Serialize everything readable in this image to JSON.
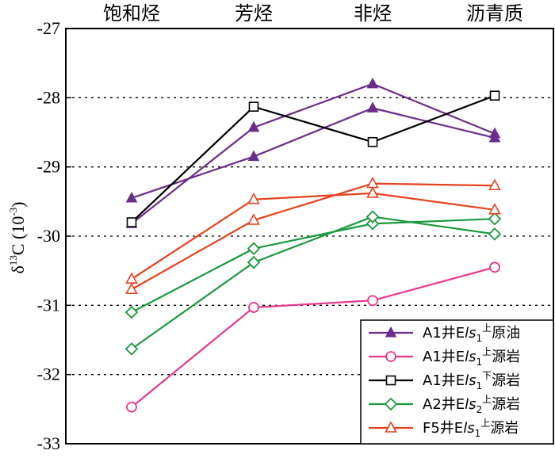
{
  "chart_data": {
    "type": "line",
    "categories": [
      "饱和烃",
      "芳烃",
      "非烃",
      "沥青质"
    ],
    "ylabel": "δ13C (10-3)",
    "ylabel_parts": {
      "delta": "δ",
      "sup1": "13",
      "c": "C (10",
      "sup2": "-3",
      "close": ")"
    },
    "ylim": [
      -33,
      -27
    ],
    "yticks": [
      -27,
      -28,
      -29,
      -30,
      -31,
      -32,
      -33
    ],
    "ytick_labels": [
      "-27",
      "-28",
      "-29",
      "-30",
      "-31",
      "-32",
      "-33"
    ],
    "grid": "horizontal dotted",
    "legend_position": "bottom-right",
    "series": [
      {
        "name": "A1井Els1上原油",
        "legend": {
          "pre": "A1井E",
          "it": "ls",
          "sub": "1",
          "sup": "上",
          "post": "原油"
        },
        "color": "#6b2d8b",
        "marker": "triangle-filled",
        "lines": [
          [
            -29.45,
            -28.85,
            -28.15,
            -28.58
          ],
          [
            -29.82,
            -28.43,
            -27.8,
            -28.52
          ]
        ]
      },
      {
        "name": "A1井Els1上源岩",
        "legend": {
          "pre": "A1井E",
          "it": "ls",
          "sub": "1",
          "sup": "上",
          "post": "源岩"
        },
        "color": "#e8368f",
        "marker": "circle",
        "lines": [
          [
            -32.47,
            -31.03,
            -30.93,
            -30.45
          ]
        ]
      },
      {
        "name": "A1井Els1下源岩",
        "legend": {
          "pre": "A1井E",
          "it": "ls",
          "sub": "1",
          "sup": "下",
          "post": "源岩"
        },
        "color": "#000000",
        "marker": "square",
        "lines": [
          [
            -29.8,
            -28.13,
            -28.64,
            -27.97
          ]
        ]
      },
      {
        "name": "A2井Els2上源岩",
        "legend": {
          "pre": "A2井E",
          "it": "ls",
          "sub": "2",
          "sup": "上",
          "post": "源岩"
        },
        "color": "#1a9a3c",
        "marker": "diamond",
        "lines": [
          [
            -31.1,
            -30.18,
            -29.82,
            -29.75
          ],
          [
            -31.63,
            -30.38,
            -29.72,
            -29.97
          ]
        ]
      },
      {
        "name": "F5井Els1上源岩",
        "legend": {
          "pre": "F5井E",
          "it": "ls",
          "sub": "1",
          "sup": "上",
          "post": "源岩"
        },
        "color": "#e8401c",
        "marker": "triangle-open",
        "lines": [
          [
            -30.62,
            -29.47,
            -29.38,
            -29.62
          ],
          [
            -30.77,
            -29.77,
            -29.24,
            -29.27
          ]
        ]
      }
    ]
  }
}
